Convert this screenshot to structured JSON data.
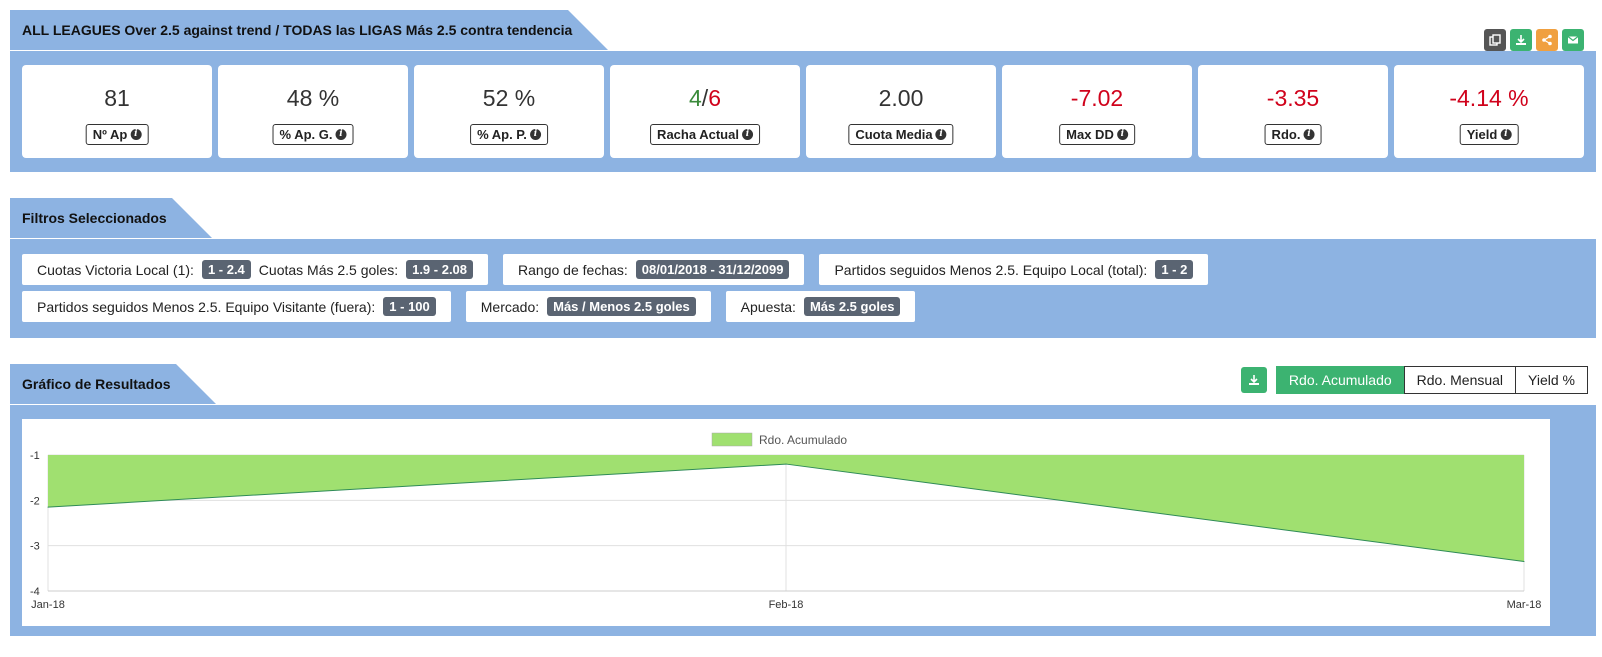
{
  "header": {
    "title": "ALL LEAGUES Over 2.5 against trend / TODAS las LIGAS Más 2.5 contra tendencia",
    "actions": [
      {
        "icon": "copy-icon",
        "color": "#555555"
      },
      {
        "icon": "download-icon",
        "color": "#3cb371"
      },
      {
        "icon": "share-icon",
        "color": "#f0a040"
      },
      {
        "icon": "email-icon",
        "color": "#3cb371"
      }
    ]
  },
  "stats": [
    {
      "value": "81",
      "label": "Nº Ap"
    },
    {
      "value": "48 %",
      "label": "% Ap. G."
    },
    {
      "value": "52 %",
      "label": "% Ap. P."
    },
    {
      "value_win": "4",
      "value_sep": "/",
      "value_loss": "6",
      "label": "Racha Actual"
    },
    {
      "value": "2.00",
      "label": "Cuota Media"
    },
    {
      "value": "-7.02",
      "label": "Max DD"
    },
    {
      "value": "-3.35",
      "label": "Rdo."
    },
    {
      "value": "-4.14 %",
      "label": "Yield"
    }
  ],
  "filters": {
    "title": "Filtros Seleccionados",
    "row1": [
      {
        "label": "Cuotas Victoria Local (1):",
        "value": "1 - 2.4",
        "label2": "Cuotas Más 2.5 goles:",
        "value2": "1.9 - 2.08"
      },
      {
        "label": "Rango de fechas:",
        "value": "08/01/2018 - 31/12/2099"
      },
      {
        "label": "Partidos seguidos Menos 2.5. Equipo Local (total):",
        "value": "1 - 2"
      }
    ],
    "row2": [
      {
        "label": "Partidos seguidos Menos 2.5. Equipo Visitante (fuera):",
        "value": "1 - 100"
      },
      {
        "label": "Mercado:",
        "value": "Más / Menos 2.5 goles"
      },
      {
        "label": "Apuesta:",
        "value": "Más 2.5 goles"
      }
    ]
  },
  "chart_section": {
    "title": "Gráfico de Resultados",
    "tabs": [
      "Rdo. Acumulado",
      "Rdo. Mensual",
      "Yield %"
    ],
    "active_tab": "Rdo. Acumulado"
  },
  "chart_data": {
    "type": "area",
    "categories": [
      "Jan-18",
      "Feb-18",
      "Mar-18"
    ],
    "series": [
      {
        "name": "Rdo. Acumulado",
        "values": [
          -2.15,
          -1.2,
          -3.35
        ],
        "color": "#a0e070",
        "line": "#2e8b57"
      }
    ],
    "ylim": [
      -4,
      -1
    ],
    "yticks": [
      -1,
      -2,
      -3,
      -4
    ],
    "legend": "top-center",
    "grid": true
  }
}
